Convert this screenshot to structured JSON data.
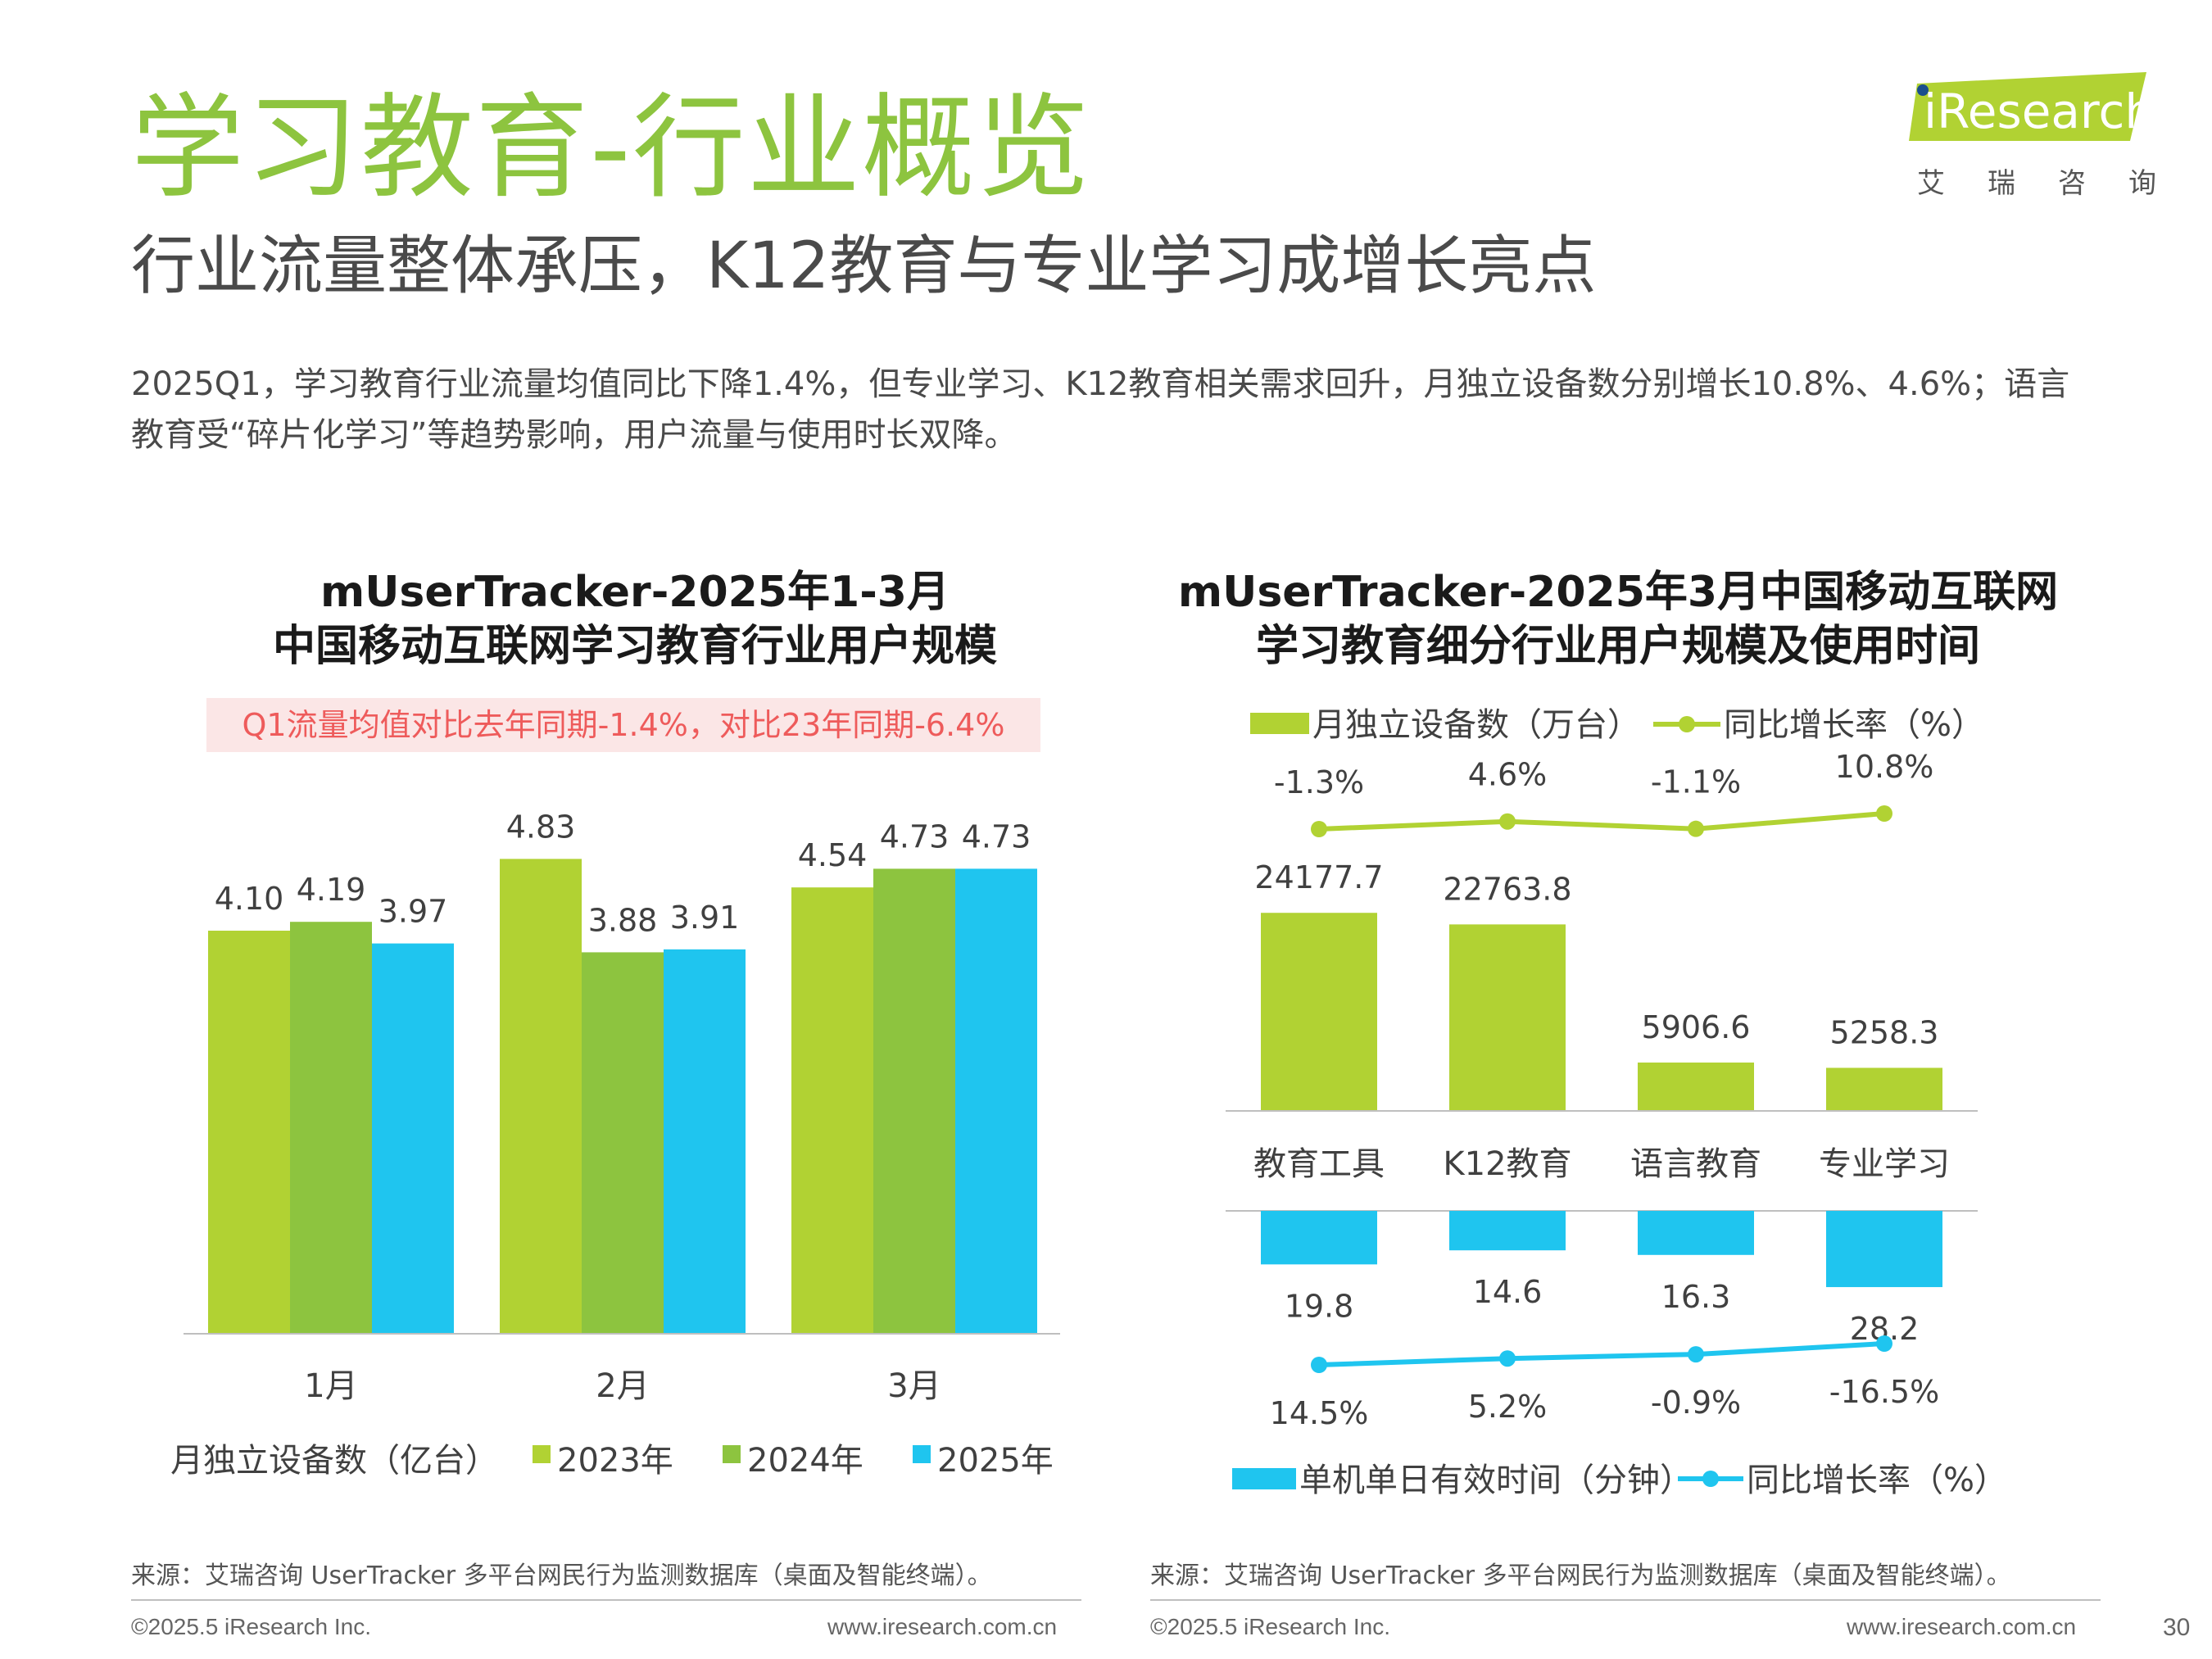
{
  "header": {
    "title": "学习教育-行业概览",
    "subtitle": "行业流量整体承压，K12教育与专业学习成增长亮点",
    "intro": "2025Q1，学习教育行业流量均值同比下降1.4%，但专业学习、K12教育相关需求回升，月独立设备数分别增长10.8%、4.6%；语言教育受“碎片化学习”等趋势影响，用户流量与使用时长双降。",
    "logo_text": "iResearch",
    "logo_sub": "艾瑞咨询"
  },
  "colors": {
    "green_light": "#b1d233",
    "green_mid": "#8dc43f",
    "cyan": "#1fc5ef",
    "title_green": "#8dc43f",
    "note_red": "#ee5b5b"
  },
  "chart_data": [
    {
      "type": "bar",
      "title_line1": "mUserTracker-2025年1-3月",
      "title_line2": "中国移动互联网学习教育行业用户规模",
      "annotation": "Q1流量均值对比去年同期-1.4%，对比23年同期-6.4%",
      "categories": [
        "1月",
        "2月",
        "3月"
      ],
      "series": [
        {
          "name": "2023年",
          "values": [
            4.1,
            4.83,
            4.54
          ],
          "color": "#b1d233"
        },
        {
          "name": "2024年",
          "values": [
            4.19,
            3.88,
            4.73
          ],
          "color": "#8dc43f"
        },
        {
          "name": "2025年",
          "values": [
            3.97,
            3.91,
            4.73
          ],
          "color": "#1fc5ef"
        }
      ],
      "value_labels": [
        [
          "4.10",
          "4.83",
          "4.54"
        ],
        [
          "4.19",
          "3.88",
          "4.73"
        ],
        [
          "3.97",
          "3.91",
          "4.73"
        ]
      ],
      "legend_title": "月独立设备数（亿台）",
      "ylim": [
        0,
        5.6
      ],
      "legend_position": "bottom"
    },
    {
      "type": "bar",
      "title_line1": "mUserTracker-2025年3月中国移动互联网",
      "title_line2": "学习教育细分行业用户规模及使用时间",
      "categories": [
        "教育工具",
        "K12教育",
        "语言教育",
        "专业学习"
      ],
      "devices": {
        "name": "月独立设备数（万台）",
        "values": [
          24177.7,
          22763.8,
          5906.6,
          5258.3
        ],
        "labels": [
          "24177.7",
          "22763.8",
          "5906.6",
          "5258.3"
        ],
        "color": "#b1d233",
        "growth_name": "同比增长率（%）",
        "growth": [
          -1.3,
          4.6,
          -1.1,
          10.8
        ],
        "growth_labels": [
          "-1.3%",
          "4.6%",
          "-1.1%",
          "10.8%"
        ]
      },
      "time": {
        "name": "单机单日有效时间（分钟）",
        "values": [
          19.8,
          14.6,
          16.3,
          28.2
        ],
        "labels": [
          "19.8",
          "14.6",
          "16.3",
          "28.2"
        ],
        "color": "#1fc5ef",
        "growth_name": "同比增长率（%）",
        "growth": [
          14.5,
          5.2,
          -0.9,
          -16.5
        ],
        "growth_labels": [
          "14.5%",
          "5.2%",
          "-0.9%",
          "-16.5%"
        ]
      },
      "legend_position": "top / bottom"
    }
  ],
  "footer": {
    "source": "来源：艾瑞咨询 UserTracker 多平台网民行为监测数据库（桌面及智能终端）。",
    "copyright": "©2025.5 iResearch Inc.",
    "website": "www.iresearch.com.cn",
    "page_number": "30"
  }
}
